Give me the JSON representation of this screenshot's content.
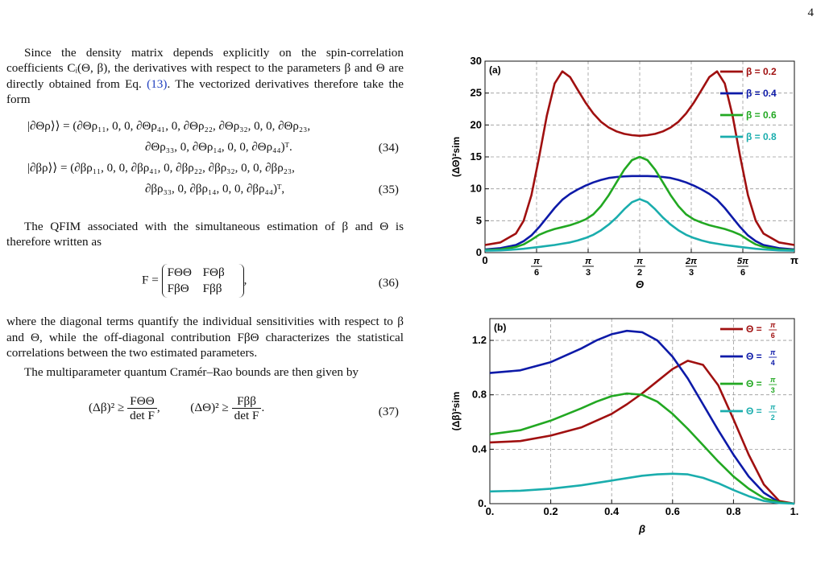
{
  "page_number": "4",
  "text": {
    "p1": "Since the density matrix depends explicitly on the spin-correlation coefficients Cᵢ(Θ, β), the derivatives with respect to the parameters β and Θ are directly obtained from Eq. ",
    "p1_ref": "(13)",
    "p1_end": ". The vectorized derivatives therefore take the form",
    "eq34a": "|∂Θρ⟩⟩ = (∂Θρ₁₁, 0, 0, ∂Θρ₄₁, 0, ∂Θρ₂₂, ∂Θρ₃₂, 0, 0, ∂Θρ₂₃,",
    "eq34b": "∂Θρ₃₃, 0, ∂Θρ₁₄, 0, 0, ∂Θρ₄₄)ᵀ.",
    "eq34_num": "(34)",
    "eq35a": "|∂βρ⟩⟩ = (∂βρ₁₁, 0, 0, ∂βρ₄₁, 0, ∂βρ₂₂, ∂βρ₃₂, 0, 0, ∂βρ₂₃,",
    "eq35b": "∂βρ₃₃, 0, ∂βρ₁₄, 0, 0, ∂βρ₄₄)ᵀ,",
    "eq35_num": "(35)",
    "p2": "The QFIM associated with the simultaneous estimation of β and Θ is therefore written as",
    "eq36_lhs": "F =",
    "eq36_m11": "FΘΘ",
    "eq36_m12": "FΘβ",
    "eq36_m21": "FβΘ",
    "eq36_m22": "Fββ",
    "eq36_end": ",",
    "eq36_num": "(36)",
    "p3": "where the diagonal terms quantify the individual sensitivities with respect to β and Θ, while the off-diagonal contribution FβΘ characterizes the statistical correlations between the two estimated parameters.",
    "p4": "The multiparameter quantum Cramér–Rao bounds are then given by",
    "eq37_a_lhs": "(Δβ)² ≥",
    "eq37_a_num": "FΘΘ",
    "eq37_a_den": "det F",
    "eq37_sep": ",",
    "eq37_b_lhs": "(ΔΘ)² ≥",
    "eq37_b_num": "Fββ",
    "eq37_b_den": "det F",
    "eq37_end": ".",
    "eq37_num": "(37)"
  },
  "chart_data": [
    {
      "type": "line",
      "panel_label": "(a)",
      "xlabel": "Θ",
      "ylabel": "(ΔΘ)²sim",
      "xlim": [
        0,
        3.1416
      ],
      "ylim": [
        0,
        30
      ],
      "x_tick_labels": [
        "0",
        "π/6",
        "π/3",
        "π/2",
        "2π/3",
        "5π/6",
        "π"
      ],
      "x_tick_values": [
        0,
        0.5236,
        1.0472,
        1.5708,
        2.0944,
        2.618,
        3.1416
      ],
      "y_ticks": [
        0,
        5,
        10,
        15,
        20,
        25,
        30
      ],
      "grid": true,
      "legend": "top-right",
      "series": [
        {
          "name": "β = 0.2",
          "color": "#a01010",
          "x": [
            0,
            0.157,
            0.314,
            0.393,
            0.471,
            0.55,
            0.628,
            0.707,
            0.785,
            0.864,
            0.942,
            1.021,
            1.1,
            1.178,
            1.257,
            1.335,
            1.414,
            1.492,
            1.571
          ],
          "values": [
            1.2,
            1.6,
            3.0,
            5.0,
            9.0,
            15.0,
            21.5,
            26.5,
            28.4,
            27.5,
            25.5,
            23.5,
            21.8,
            20.5,
            19.6,
            19.0,
            18.6,
            18.4,
            18.3
          ]
        },
        {
          "name": "β = 0.4",
          "color": "#0d1aa8",
          "x": [
            0,
            0.157,
            0.314,
            0.393,
            0.471,
            0.55,
            0.628,
            0.707,
            0.785,
            0.864,
            0.942,
            1.021,
            1.1,
            1.178,
            1.257,
            1.335,
            1.414,
            1.492,
            1.571
          ],
          "values": [
            0.5,
            0.7,
            1.2,
            1.8,
            2.7,
            4.0,
            5.5,
            7.0,
            8.3,
            9.2,
            9.9,
            10.5,
            11.0,
            11.4,
            11.7,
            11.85,
            11.95,
            12.0,
            12.0
          ]
        },
        {
          "name": "β = 0.6",
          "color": "#22a822",
          "x": [
            0,
            0.157,
            0.314,
            0.393,
            0.471,
            0.55,
            0.628,
            0.707,
            0.785,
            0.864,
            0.942,
            1.021,
            1.1,
            1.178,
            1.257,
            1.335,
            1.414,
            1.492,
            1.571
          ],
          "values": [
            0.4,
            0.5,
            0.9,
            1.3,
            2.0,
            2.8,
            3.3,
            3.7,
            4.0,
            4.3,
            4.7,
            5.2,
            6.0,
            7.3,
            9.0,
            11.0,
            13.0,
            14.5,
            15.0
          ]
        },
        {
          "name": "β = 0.8",
          "color": "#1aadad",
          "x": [
            0,
            0.157,
            0.314,
            0.393,
            0.471,
            0.55,
            0.628,
            0.707,
            0.785,
            0.864,
            0.942,
            1.021,
            1.1,
            1.178,
            1.257,
            1.335,
            1.414,
            1.492,
            1.571
          ],
          "values": [
            0.3,
            0.35,
            0.5,
            0.6,
            0.75,
            0.9,
            1.05,
            1.2,
            1.4,
            1.6,
            1.9,
            2.3,
            2.8,
            3.5,
            4.4,
            5.5,
            6.8,
            7.9,
            8.4
          ]
        }
      ]
    },
    {
      "type": "line",
      "panel_label": "(b)",
      "xlabel": "β",
      "ylabel": "(Δβ)²sim",
      "xlim": [
        0,
        1
      ],
      "ylim": [
        0,
        1.36
      ],
      "x_tick_labels": [
        "0.",
        "0.2",
        "0.4",
        "0.6",
        "0.8",
        "1."
      ],
      "x_tick_values": [
        0,
        0.2,
        0.4,
        0.6,
        0.8,
        1.0
      ],
      "y_tick_labels": [
        "0.",
        "0.4",
        "0.8",
        "1.2"
      ],
      "y_tick_values": [
        0,
        0.4,
        0.8,
        1.2
      ],
      "grid": true,
      "legend": "top-right",
      "series": [
        {
          "name": "Θ = π/6",
          "color": "#a01010",
          "x": [
            0,
            0.1,
            0.2,
            0.3,
            0.4,
            0.45,
            0.5,
            0.55,
            0.6,
            0.65,
            0.7,
            0.75,
            0.8,
            0.85,
            0.9,
            0.95,
            1.0
          ],
          "values": [
            0.45,
            0.46,
            0.5,
            0.56,
            0.66,
            0.73,
            0.81,
            0.9,
            0.99,
            1.05,
            1.02,
            0.87,
            0.62,
            0.36,
            0.14,
            0.02,
            0.0
          ]
        },
        {
          "name": "Θ = π/4",
          "color": "#0d1aa8",
          "x": [
            0,
            0.1,
            0.2,
            0.3,
            0.35,
            0.4,
            0.45,
            0.5,
            0.55,
            0.6,
            0.65,
            0.7,
            0.75,
            0.8,
            0.85,
            0.9,
            0.95,
            1.0
          ],
          "values": [
            0.96,
            0.98,
            1.04,
            1.14,
            1.2,
            1.245,
            1.27,
            1.26,
            1.2,
            1.08,
            0.92,
            0.73,
            0.54,
            0.36,
            0.2,
            0.08,
            0.01,
            0.0
          ]
        },
        {
          "name": "Θ = π/3",
          "color": "#22a822",
          "x": [
            0,
            0.1,
            0.2,
            0.3,
            0.35,
            0.4,
            0.45,
            0.5,
            0.55,
            0.6,
            0.65,
            0.7,
            0.75,
            0.8,
            0.85,
            0.9,
            0.95,
            1.0
          ],
          "values": [
            0.51,
            0.54,
            0.61,
            0.7,
            0.75,
            0.79,
            0.81,
            0.8,
            0.75,
            0.66,
            0.55,
            0.43,
            0.31,
            0.2,
            0.11,
            0.04,
            0.01,
            0.0
          ]
        },
        {
          "name": "Θ = π/2",
          "color": "#1aadad",
          "x": [
            0,
            0.1,
            0.2,
            0.3,
            0.4,
            0.5,
            0.55,
            0.6,
            0.65,
            0.7,
            0.75,
            0.8,
            0.85,
            0.9,
            0.95,
            1.0
          ],
          "values": [
            0.09,
            0.095,
            0.11,
            0.135,
            0.17,
            0.205,
            0.215,
            0.22,
            0.215,
            0.19,
            0.15,
            0.1,
            0.055,
            0.02,
            0.005,
            0.0
          ]
        }
      ]
    }
  ]
}
